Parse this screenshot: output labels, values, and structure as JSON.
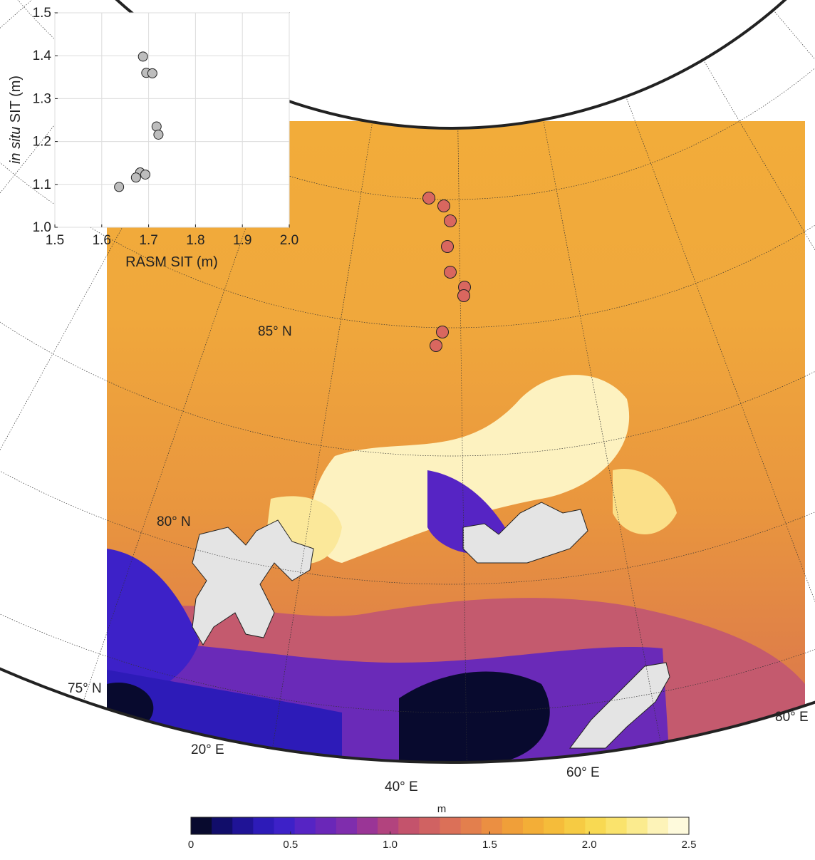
{
  "chart_data": [
    {
      "type": "scatter",
      "xlabel": "RASM SIT (m)",
      "ylabel_italic": "in situ",
      "ylabel_rest": " SIT (m)",
      "xlim": [
        1.5,
        2.0
      ],
      "ylim": [
        1.0,
        1.5
      ],
      "xticks": [
        "1.5",
        "1.6",
        "1.7",
        "1.8",
        "1.9",
        "2.0"
      ],
      "yticks": [
        "1.0",
        "1.1",
        "1.2",
        "1.3",
        "1.4",
        "1.5"
      ],
      "grid": true,
      "marker_color": "#bdbdbd",
      "points": [
        {
          "x": 1.688,
          "y": 1.398
        },
        {
          "x": 1.695,
          "y": 1.36
        },
        {
          "x": 1.708,
          "y": 1.359
        },
        {
          "x": 1.717,
          "y": 1.235
        },
        {
          "x": 1.721,
          "y": 1.216
        },
        {
          "x": 1.682,
          "y": 1.128
        },
        {
          "x": 1.693,
          "y": 1.123
        },
        {
          "x": 1.673,
          "y": 1.116
        },
        {
          "x": 1.637,
          "y": 1.094
        }
      ]
    },
    {
      "type": "heatmap",
      "description": "RASM sea ice thickness map",
      "lat_labels": [
        "85° N",
        "80° N",
        "75° N"
      ],
      "lon_labels": [
        "20° E",
        "40° E",
        "60° E",
        "80° E"
      ],
      "lat_range": [
        75,
        90
      ],
      "lon_range": [
        10,
        80
      ],
      "station_color": "#d9675f",
      "colorbar": {
        "label": "m",
        "min": 0,
        "max": 2.5,
        "tick_labels": [
          "0",
          "0.5",
          "1.0",
          "1.5",
          "2.0",
          "2.5"
        ],
        "colors": [
          "#080a2e",
          "#110d6a",
          "#1f1396",
          "#2d1bb8",
          "#3d21c8",
          "#5624c4",
          "#6a27b8",
          "#7f2dad",
          "#9a3596",
          "#b2437e",
          "#c4536c",
          "#d06262",
          "#db7058",
          "#e37f4d",
          "#eb8f42",
          "#f09f39",
          "#f3ae37",
          "#f5bc3a",
          "#f6cb43",
          "#f8d952",
          "#fae36c",
          "#fbeb8e",
          "#fdf3b8",
          "#fefadc"
        ]
      }
    }
  ]
}
